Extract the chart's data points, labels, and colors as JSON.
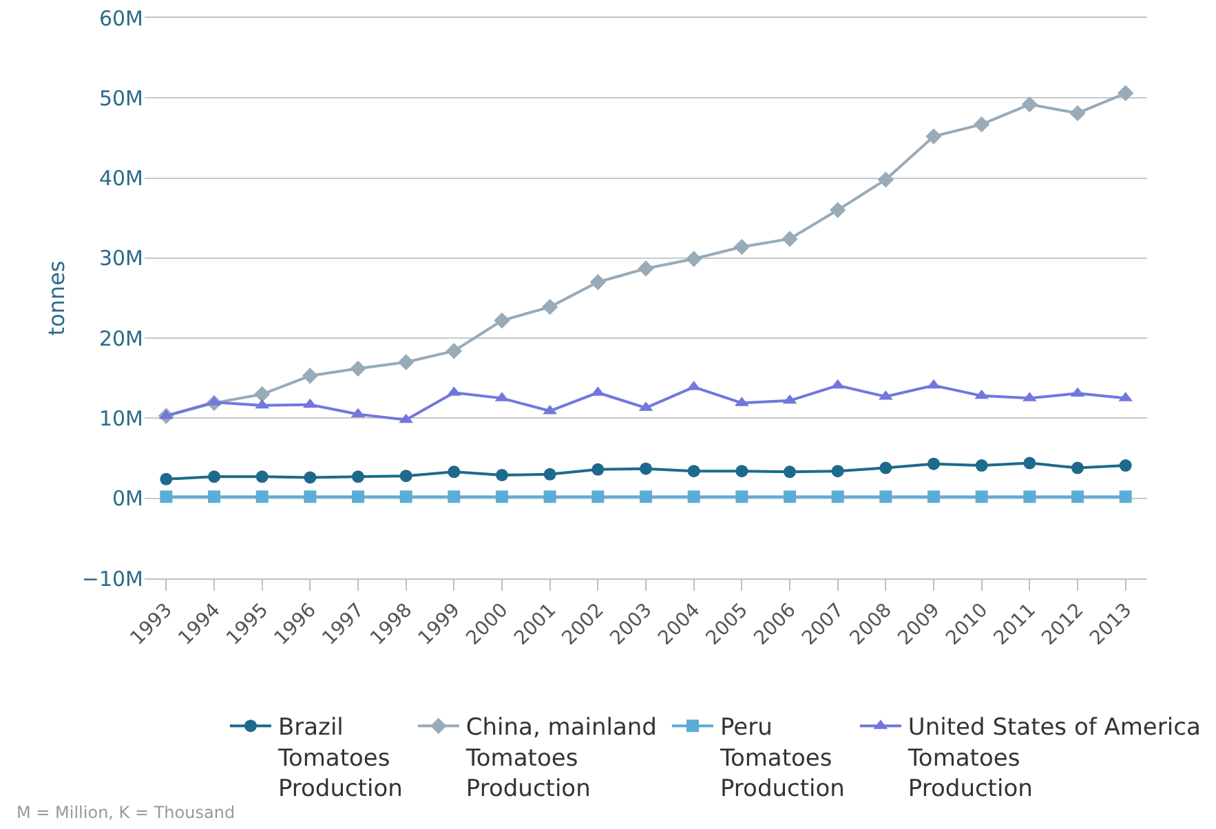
{
  "chart_data": {
    "type": "line",
    "ylabel": "tonnes",
    "categories": [
      "1993",
      "1994",
      "1995",
      "1996",
      "1997",
      "1998",
      "1999",
      "2000",
      "2001",
      "2002",
      "2003",
      "2004",
      "2005",
      "2006",
      "2007",
      "2008",
      "2009",
      "2010",
      "2011",
      "2012",
      "2013"
    ],
    "series": [
      {
        "name": "Brazil Tomatoes Production",
        "color": "#1d6a8c",
        "marker": "circle",
        "values": [
          2.4,
          2.7,
          2.7,
          2.6,
          2.7,
          2.8,
          3.3,
          2.9,
          3.0,
          3.6,
          3.7,
          3.4,
          3.4,
          3.3,
          3.4,
          3.8,
          4.3,
          4.1,
          4.4,
          3.8,
          4.1
        ]
      },
      {
        "name": "China, mainland Tomatoes Production",
        "color": "#97abb9",
        "marker": "diamond",
        "values": [
          10.3,
          11.9,
          13.0,
          15.3,
          16.2,
          17.0,
          18.4,
          22.2,
          23.9,
          27.0,
          28.7,
          29.9,
          31.4,
          32.4,
          36.0,
          39.8,
          45.2,
          46.7,
          49.2,
          48.1,
          50.6
        ]
      },
      {
        "name": "Peru Tomatoes Production",
        "color": "#5aadd6",
        "marker": "square",
        "values": [
          0.2,
          0.2,
          0.2,
          0.2,
          0.2,
          0.2,
          0.2,
          0.2,
          0.2,
          0.2,
          0.2,
          0.2,
          0.2,
          0.2,
          0.2,
          0.2,
          0.2,
          0.2,
          0.2,
          0.2,
          0.2
        ]
      },
      {
        "name": "United States of America Tomatoes Production",
        "color": "#7077dd",
        "marker": "triangle",
        "values": [
          10.3,
          12.0,
          11.6,
          11.7,
          10.5,
          9.8,
          13.2,
          12.5,
          10.9,
          13.2,
          11.3,
          13.9,
          11.9,
          12.2,
          14.1,
          12.7,
          14.1,
          12.8,
          12.5,
          13.1,
          12.5
        ]
      }
    ],
    "ylim": [
      -10,
      60
    ],
    "yticks": [
      {
        "value": -10,
        "label": "−10M"
      },
      {
        "value": 0,
        "label": "0M"
      },
      {
        "value": 10,
        "label": "10M"
      },
      {
        "value": 20,
        "label": "20M"
      },
      {
        "value": 30,
        "label": "30M"
      },
      {
        "value": 40,
        "label": "40M"
      },
      {
        "value": 50,
        "label": "50M"
      },
      {
        "value": 60,
        "label": "60M"
      }
    ],
    "grid": "y",
    "legend": "bottom",
    "line_style": "solid",
    "annotations": [
      "M = Million, K = Thousand"
    ]
  }
}
